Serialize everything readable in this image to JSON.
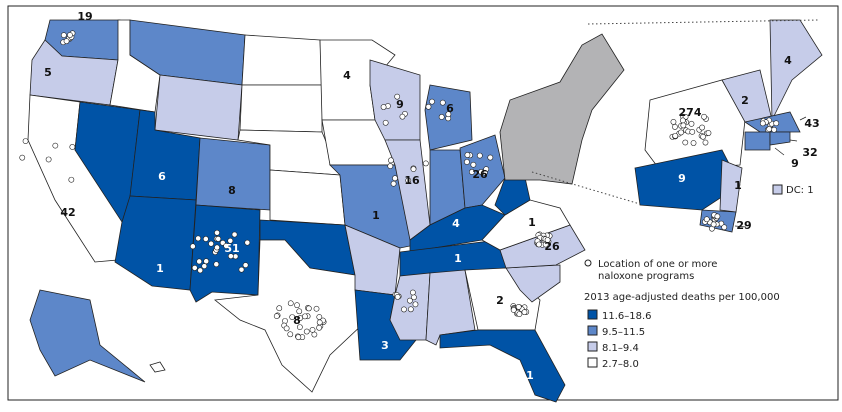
{
  "colors": {
    "11.6-18.6": "#0053a6",
    "9.5-11.5": "#5d87c9",
    "8.1-9.4": "#c6cce9",
    "2.7-8.0": "#ffffff",
    "inset_region": "#b3b3b5",
    "dot": "#ffffff"
  },
  "legend": {
    "dot_label_1": "Location of one or more",
    "dot_label_2": "naloxone programs",
    "title": "2013 age-adjusted deaths per 100,000",
    "classes": [
      {
        "label": "11.6–18.6",
        "key": "11.6-18.6"
      },
      {
        "label": "9.5–11.5",
        "key": "9.5-11.5"
      },
      {
        "label": "8.1–9.4",
        "key": "8.1-9.4"
      },
      {
        "label": "2.7–8.0",
        "key": "2.7-8.0"
      }
    ],
    "dc_label": "DC: 1"
  },
  "states": {
    "WA": {
      "programs": "19",
      "class": "9.5-11.5"
    },
    "OR": {
      "programs": "5",
      "class": "8.1-9.4"
    },
    "CA": {
      "programs": "42",
      "class": "2.7-8.0"
    },
    "NV": {
      "programs": "",
      "class": "11.6-18.6"
    },
    "ID": {
      "programs": "",
      "class": "2.7-8.0"
    },
    "MT": {
      "programs": "",
      "class": "9.5-11.5"
    },
    "WY": {
      "programs": "",
      "class": "8.1-9.4"
    },
    "UT": {
      "programs": "6",
      "class": "11.6-18.6"
    },
    "AZ": {
      "programs": "1",
      "class": "11.6-18.6"
    },
    "CO": {
      "programs": "8",
      "class": "9.5-11.5"
    },
    "NM": {
      "programs": "51",
      "class": "11.6-18.6"
    },
    "ND": {
      "programs": "",
      "class": "2.7-8.0"
    },
    "SD": {
      "programs": "",
      "class": "2.7-8.0"
    },
    "NE": {
      "programs": "",
      "class": "2.7-8.0"
    },
    "KS": {
      "programs": "",
      "class": "2.7-8.0"
    },
    "OK": {
      "programs": "",
      "class": "11.6-18.6"
    },
    "TX": {
      "programs": "8",
      "class": "2.7-8.0"
    },
    "MN": {
      "programs": "4",
      "class": "2.7-8.0"
    },
    "IA": {
      "programs": "",
      "class": "2.7-8.0"
    },
    "MO": {
      "programs": "1",
      "class": "9.5-11.5"
    },
    "AR": {
      "programs": "",
      "class": "8.1-9.4"
    },
    "LA": {
      "programs": "3",
      "class": "11.6-18.6"
    },
    "WI": {
      "programs": "9",
      "class": "8.1-9.4"
    },
    "IL": {
      "programs": "16",
      "class": "8.1-9.4"
    },
    "MI": {
      "programs": "6",
      "class": "9.5-11.5"
    },
    "IN": {
      "programs": "",
      "class": "9.5-11.5"
    },
    "OH": {
      "programs": "26",
      "class": "9.5-11.5"
    },
    "KY": {
      "programs": "4",
      "class": "11.6-18.6"
    },
    "TN": {
      "programs": "1",
      "class": "11.6-18.6"
    },
    "MS": {
      "programs": "",
      "class": "8.1-9.4"
    },
    "AL": {
      "programs": "",
      "class": "8.1-9.4"
    },
    "GA": {
      "programs": "2",
      "class": "2.7-8.0"
    },
    "FL": {
      "programs": "1",
      "class": "11.6-18.6"
    },
    "SC": {
      "programs": "",
      "class": "8.1-9.4"
    },
    "NC": {
      "programs": "26",
      "class": "8.1-9.4"
    },
    "VA": {
      "programs": "1",
      "class": "2.7-8.0"
    },
    "WV": {
      "programs": "",
      "class": "11.6-18.6"
    },
    "AK": {
      "programs": "",
      "class": "9.5-11.5"
    },
    "HI": {
      "programs": "",
      "class": "2.7-8.0"
    },
    "NY": {
      "programs": "274",
      "class": "2.7-8.0"
    },
    "PA": {
      "programs": "9",
      "class": "11.6-18.6"
    },
    "NJ": {
      "programs": "1",
      "class": "8.1-9.4"
    },
    "MD": {
      "programs": "29",
      "class": "9.5-11.5"
    },
    "VTNH": {
      "programs": "2",
      "class": "8.1-9.4"
    },
    "ME": {
      "programs": "4",
      "class": "8.1-9.4"
    },
    "MA": {
      "programs": "43",
      "class": "9.5-11.5"
    },
    "RI": {
      "programs": "32",
      "class": "9.5-11.5"
    },
    "CT": {
      "programs": "9",
      "class": "9.5-11.5"
    }
  }
}
